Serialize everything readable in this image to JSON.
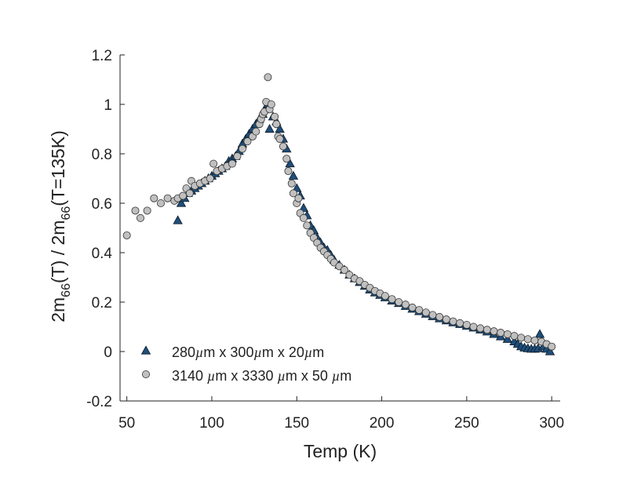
{
  "chart_data": {
    "type": "scatter",
    "xlabel": "Temp (K)",
    "ylabel": {
      "parts": [
        {
          "text": "2m",
          "role": "base"
        },
        {
          "text": "66",
          "role": "sub"
        },
        {
          "text": "(T) / 2m",
          "role": "base"
        },
        {
          "text": "66",
          "role": "sub"
        },
        {
          "text": "(T=135K)",
          "role": "base"
        }
      ]
    },
    "xlim": [
      46,
      305
    ],
    "ylim": [
      -0.2,
      1.2
    ],
    "xticks": [
      {
        "value": 50,
        "label": "50"
      },
      {
        "value": 100,
        "label": "100"
      },
      {
        "value": 150,
        "label": "150"
      },
      {
        "value": 200,
        "label": "200"
      },
      {
        "value": 250,
        "label": "250"
      },
      {
        "value": 300,
        "label": "300"
      }
    ],
    "yticks": [
      {
        "value": -0.2,
        "label": "-0.2"
      },
      {
        "value": 0,
        "label": "0"
      },
      {
        "value": 0.2,
        "label": "0.2"
      },
      {
        "value": 0.4,
        "label": "0.4"
      },
      {
        "value": 0.6,
        "label": "0.6"
      },
      {
        "value": 0.8,
        "label": "0.8"
      },
      {
        "value": 1.0,
        "label": "1"
      },
      {
        "value": 1.2,
        "label": "1.2"
      }
    ],
    "grid": false,
    "legend_position": "bottom-left",
    "series": [
      {
        "name": "280µm x 300µm x 20µm",
        "legend_parts": [
          {
            "text": "280",
            "style": "normal"
          },
          {
            "text": "µ",
            "style": "italic"
          },
          {
            "text": "m x 300",
            "style": "normal"
          },
          {
            "text": "µ",
            "style": "italic"
          },
          {
            "text": "m x 20",
            "style": "normal"
          },
          {
            "text": "µ",
            "style": "italic"
          },
          {
            "text": "m",
            "style": "normal"
          }
        ],
        "marker": "triangle",
        "fill": "#1f4e79",
        "stroke": "#0d1b2a",
        "points": [
          [
            80,
            0.53
          ],
          [
            82,
            0.6
          ],
          [
            84,
            0.62
          ],
          [
            86,
            0.64
          ],
          [
            88,
            0.65
          ],
          [
            90,
            0.66
          ],
          [
            92,
            0.67
          ],
          [
            94,
            0.68
          ],
          [
            96,
            0.69
          ],
          [
            98,
            0.7
          ],
          [
            100,
            0.71
          ],
          [
            102,
            0.72
          ],
          [
            104,
            0.73
          ],
          [
            106,
            0.74
          ],
          [
            108,
            0.75
          ],
          [
            110,
            0.77
          ],
          [
            112,
            0.78
          ],
          [
            114,
            0.79
          ],
          [
            116,
            0.81
          ],
          [
            118,
            0.84
          ],
          [
            120,
            0.86
          ],
          [
            122,
            0.88
          ],
          [
            124,
            0.9
          ],
          [
            126,
            0.92
          ],
          [
            128,
            0.94
          ],
          [
            130,
            0.96
          ],
          [
            132,
            0.99
          ],
          [
            133,
            1.0
          ],
          [
            134,
            0.9
          ],
          [
            136,
            0.95
          ],
          [
            138,
            0.93
          ],
          [
            140,
            0.9
          ],
          [
            142,
            0.86
          ],
          [
            144,
            0.82
          ],
          [
            146,
            0.76
          ],
          [
            148,
            0.71
          ],
          [
            150,
            0.66
          ],
          [
            152,
            0.63
          ],
          [
            154,
            0.58
          ],
          [
            156,
            0.55
          ],
          [
            158,
            0.51
          ],
          [
            160,
            0.49
          ],
          [
            162,
            0.46
          ],
          [
            164,
            0.44
          ],
          [
            166,
            0.42
          ],
          [
            168,
            0.41
          ],
          [
            170,
            0.39
          ],
          [
            172,
            0.37
          ],
          [
            175,
            0.35
          ],
          [
            178,
            0.33
          ],
          [
            181,
            0.31
          ],
          [
            184,
            0.295
          ],
          [
            187,
            0.28
          ],
          [
            190,
            0.265
          ],
          [
            193,
            0.25
          ],
          [
            196,
            0.238
          ],
          [
            199,
            0.228
          ],
          [
            202,
            0.218
          ],
          [
            206,
            0.205
          ],
          [
            210,
            0.195
          ],
          [
            214,
            0.183
          ],
          [
            218,
            0.172
          ],
          [
            222,
            0.162
          ],
          [
            226,
            0.152
          ],
          [
            230,
            0.142
          ],
          [
            234,
            0.133
          ],
          [
            238,
            0.125
          ],
          [
            242,
            0.117
          ],
          [
            246,
            0.11
          ],
          [
            250,
            0.103
          ],
          [
            254,
            0.096
          ],
          [
            258,
            0.088
          ],
          [
            262,
            0.08
          ],
          [
            266,
            0.07
          ],
          [
            270,
            0.06
          ],
          [
            274,
            0.05
          ],
          [
            278,
            0.04
          ],
          [
            280,
            0.03
          ],
          [
            282,
            0.02
          ],
          [
            284,
            0.015
          ],
          [
            286,
            0.012
          ],
          [
            288,
            0.01
          ],
          [
            290,
            0.01
          ],
          [
            292,
            0.012
          ],
          [
            293,
            0.07
          ],
          [
            295,
            0.02
          ],
          [
            297,
            0.01
          ],
          [
            299,
            0.0
          ]
        ]
      },
      {
        "name": "3140 µm x 3330 µm x 50 µm",
        "legend_parts": [
          {
            "text": "3140 ",
            "style": "normal"
          },
          {
            "text": "µ",
            "style": "italic"
          },
          {
            "text": "m x 3330 ",
            "style": "normal"
          },
          {
            "text": "µ",
            "style": "italic"
          },
          {
            "text": "m x 50 ",
            "style": "normal"
          },
          {
            "text": "µ",
            "style": "italic"
          },
          {
            "text": "m",
            "style": "normal"
          }
        ],
        "marker": "circle",
        "fill": "#c0c0c0",
        "stroke": "#333333",
        "points": [
          [
            50,
            0.47
          ],
          [
            55,
            0.57
          ],
          [
            58,
            0.54
          ],
          [
            62,
            0.57
          ],
          [
            66,
            0.62
          ],
          [
            70,
            0.6
          ],
          [
            74,
            0.62
          ],
          [
            78,
            0.61
          ],
          [
            80,
            0.62
          ],
          [
            83,
            0.63
          ],
          [
            85,
            0.66
          ],
          [
            87,
            0.64
          ],
          [
            88,
            0.69
          ],
          [
            90,
            0.67
          ],
          [
            93,
            0.68
          ],
          [
            96,
            0.69
          ],
          [
            99,
            0.7
          ],
          [
            101,
            0.76
          ],
          [
            103,
            0.73
          ],
          [
            106,
            0.74
          ],
          [
            109,
            0.75
          ],
          [
            112,
            0.76
          ],
          [
            115,
            0.79
          ],
          [
            118,
            0.82
          ],
          [
            121,
            0.85
          ],
          [
            124,
            0.87
          ],
          [
            126,
            0.89
          ],
          [
            128,
            0.92
          ],
          [
            129,
            0.94
          ],
          [
            130,
            0.96
          ],
          [
            131,
            0.97
          ],
          [
            132,
            1.01
          ],
          [
            133,
            1.11
          ],
          [
            134,
            0.98
          ],
          [
            135,
            1.0
          ],
          [
            137,
            0.95
          ],
          [
            138,
            0.92
          ],
          [
            139,
            0.87
          ],
          [
            140,
            0.86
          ],
          [
            142,
            0.83
          ],
          [
            144,
            0.78
          ],
          [
            145,
            0.73
          ],
          [
            147,
            0.68
          ],
          [
            148,
            0.64
          ],
          [
            150,
            0.6
          ],
          [
            151,
            0.62
          ],
          [
            152,
            0.56
          ],
          [
            154,
            0.54
          ],
          [
            156,
            0.51
          ],
          [
            158,
            0.48
          ],
          [
            160,
            0.46
          ],
          [
            162,
            0.44
          ],
          [
            164,
            0.42
          ],
          [
            166,
            0.405
          ],
          [
            168,
            0.39
          ],
          [
            170,
            0.375
          ],
          [
            172,
            0.36
          ],
          [
            175,
            0.345
          ],
          [
            178,
            0.33
          ],
          [
            181,
            0.31
          ],
          [
            184,
            0.295
          ],
          [
            187,
            0.285
          ],
          [
            190,
            0.27
          ],
          [
            193,
            0.258
          ],
          [
            196,
            0.245
          ],
          [
            199,
            0.235
          ],
          [
            202,
            0.225
          ],
          [
            206,
            0.212
          ],
          [
            210,
            0.2
          ],
          [
            214,
            0.19
          ],
          [
            218,
            0.178
          ],
          [
            222,
            0.168
          ],
          [
            226,
            0.158
          ],
          [
            230,
            0.148
          ],
          [
            234,
            0.14
          ],
          [
            238,
            0.13
          ],
          [
            242,
            0.122
          ],
          [
            246,
            0.115
          ],
          [
            250,
            0.108
          ],
          [
            254,
            0.1
          ],
          [
            258,
            0.094
          ],
          [
            262,
            0.088
          ],
          [
            266,
            0.082
          ],
          [
            270,
            0.076
          ],
          [
            274,
            0.07
          ],
          [
            278,
            0.063
          ],
          [
            282,
            0.056
          ],
          [
            286,
            0.05
          ],
          [
            290,
            0.045
          ],
          [
            294,
            0.04
          ],
          [
            297,
            0.03
          ],
          [
            300,
            0.02
          ]
        ]
      }
    ]
  }
}
